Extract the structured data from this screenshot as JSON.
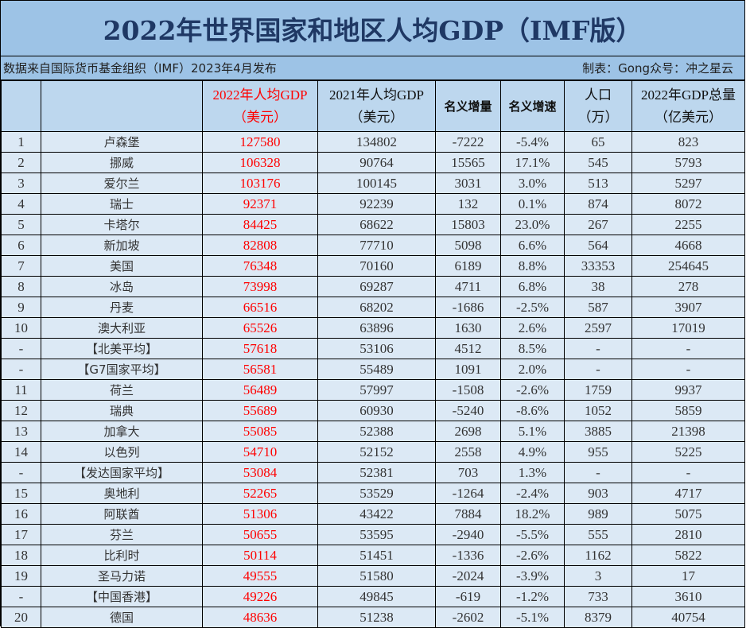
{
  "title": "2022年世界国家和地区人均GDP（IMF版）",
  "source_note": "数据来自国际货币基金组织（IMF）2023年4月发布",
  "author_note": "制表：Gong众号：冲之星云",
  "colors": {
    "title_bg": "#9dc3e6",
    "header_bg": "#bdd7ee",
    "row_bg": "#dce9f5",
    "title_text": "#1f3864",
    "highlight": "#ff0000"
  },
  "headers": {
    "rank": "",
    "name": "",
    "gdp_pc_2022": {
      "line1": "2022年人均GDP",
      "line2": "（美元）"
    },
    "gdp_pc_2021": {
      "line1": "2021年人均GDP",
      "line2": "（美元）"
    },
    "nominal_increase": "名义增量",
    "nominal_growth": "名义增速",
    "population": {
      "line1": "人口",
      "line2": "（万）"
    },
    "gdp_total_2022": {
      "line1": "2022年GDP总量",
      "line2": "（亿美元）"
    }
  },
  "rows": [
    {
      "rank": "1",
      "name": "卢森堡",
      "gdp22": "127580",
      "gdp21": "134802",
      "inc": "-7222",
      "growth": "-5.4%",
      "pop": "65",
      "total": "823"
    },
    {
      "rank": "2",
      "name": "挪威",
      "gdp22": "106328",
      "gdp21": "90764",
      "inc": "15565",
      "growth": "17.1%",
      "pop": "545",
      "total": "5793"
    },
    {
      "rank": "3",
      "name": "爱尔兰",
      "gdp22": "103176",
      "gdp21": "100145",
      "inc": "3031",
      "growth": "3.0%",
      "pop": "513",
      "total": "5297"
    },
    {
      "rank": "4",
      "name": "瑞士",
      "gdp22": "92371",
      "gdp21": "92239",
      "inc": "132",
      "growth": "0.1%",
      "pop": "874",
      "total": "8072"
    },
    {
      "rank": "5",
      "name": "卡塔尔",
      "gdp22": "84425",
      "gdp21": "68622",
      "inc": "15803",
      "growth": "23.0%",
      "pop": "267",
      "total": "2255"
    },
    {
      "rank": "6",
      "name": "新加坡",
      "gdp22": "82808",
      "gdp21": "77710",
      "inc": "5098",
      "growth": "6.6%",
      "pop": "564",
      "total": "4668"
    },
    {
      "rank": "7",
      "name": "美国",
      "gdp22": "76348",
      "gdp21": "70160",
      "inc": "6189",
      "growth": "8.8%",
      "pop": "33353",
      "total": "254645"
    },
    {
      "rank": "8",
      "name": "冰岛",
      "gdp22": "73998",
      "gdp21": "69287",
      "inc": "4711",
      "growth": "6.8%",
      "pop": "38",
      "total": "278"
    },
    {
      "rank": "9",
      "name": "丹麦",
      "gdp22": "66516",
      "gdp21": "68202",
      "inc": "-1686",
      "growth": "-2.5%",
      "pop": "587",
      "total": "3907"
    },
    {
      "rank": "10",
      "name": "澳大利亚",
      "gdp22": "65526",
      "gdp21": "63896",
      "inc": "1630",
      "growth": "2.6%",
      "pop": "2597",
      "total": "17019"
    },
    {
      "rank": "-",
      "name": "【北美平均】",
      "gdp22": "57618",
      "gdp21": "53106",
      "inc": "4512",
      "growth": "8.5%",
      "pop": "-",
      "total": "-"
    },
    {
      "rank": "-",
      "name": "【G7国家平均】",
      "gdp22": "56581",
      "gdp21": "55489",
      "inc": "1091",
      "growth": "2.0%",
      "pop": "-",
      "total": "-"
    },
    {
      "rank": "11",
      "name": "荷兰",
      "gdp22": "56489",
      "gdp21": "57997",
      "inc": "-1508",
      "growth": "-2.6%",
      "pop": "1759",
      "total": "9937"
    },
    {
      "rank": "12",
      "name": "瑞典",
      "gdp22": "55689",
      "gdp21": "60930",
      "inc": "-5240",
      "growth": "-8.6%",
      "pop": "1052",
      "total": "5859"
    },
    {
      "rank": "13",
      "name": "加拿大",
      "gdp22": "55085",
      "gdp21": "52388",
      "inc": "2698",
      "growth": "5.1%",
      "pop": "3885",
      "total": "21398"
    },
    {
      "rank": "14",
      "name": "以色列",
      "gdp22": "54710",
      "gdp21": "52152",
      "inc": "2558",
      "growth": "4.9%",
      "pop": "955",
      "total": "5225"
    },
    {
      "rank": "-",
      "name": "【发达国家平均】",
      "gdp22": "53084",
      "gdp21": "52381",
      "inc": "703",
      "growth": "1.3%",
      "pop": "-",
      "total": "-"
    },
    {
      "rank": "15",
      "name": "奥地利",
      "gdp22": "52265",
      "gdp21": "53529",
      "inc": "-1264",
      "growth": "-2.4%",
      "pop": "903",
      "total": "4717"
    },
    {
      "rank": "16",
      "name": "阿联酋",
      "gdp22": "51306",
      "gdp21": "43422",
      "inc": "7884",
      "growth": "18.2%",
      "pop": "989",
      "total": "5075"
    },
    {
      "rank": "17",
      "name": "芬兰",
      "gdp22": "50655",
      "gdp21": "53595",
      "inc": "-2940",
      "growth": "-5.5%",
      "pop": "555",
      "total": "2810"
    },
    {
      "rank": "18",
      "name": "比利时",
      "gdp22": "50114",
      "gdp21": "51451",
      "inc": "-1336",
      "growth": "-2.6%",
      "pop": "1162",
      "total": "5822"
    },
    {
      "rank": "19",
      "name": "圣马力诺",
      "gdp22": "49555",
      "gdp21": "51580",
      "inc": "-2024",
      "growth": "-3.9%",
      "pop": "3",
      "total": "17"
    },
    {
      "rank": "-",
      "name": "【中国香港】",
      "gdp22": "49226",
      "gdp21": "49845",
      "inc": "-619",
      "growth": "-1.2%",
      "pop": "733",
      "total": "3610"
    },
    {
      "rank": "20",
      "name": "德国",
      "gdp22": "48636",
      "gdp21": "51238",
      "inc": "-2602",
      "growth": "-5.1%",
      "pop": "8379",
      "total": "40754"
    }
  ]
}
